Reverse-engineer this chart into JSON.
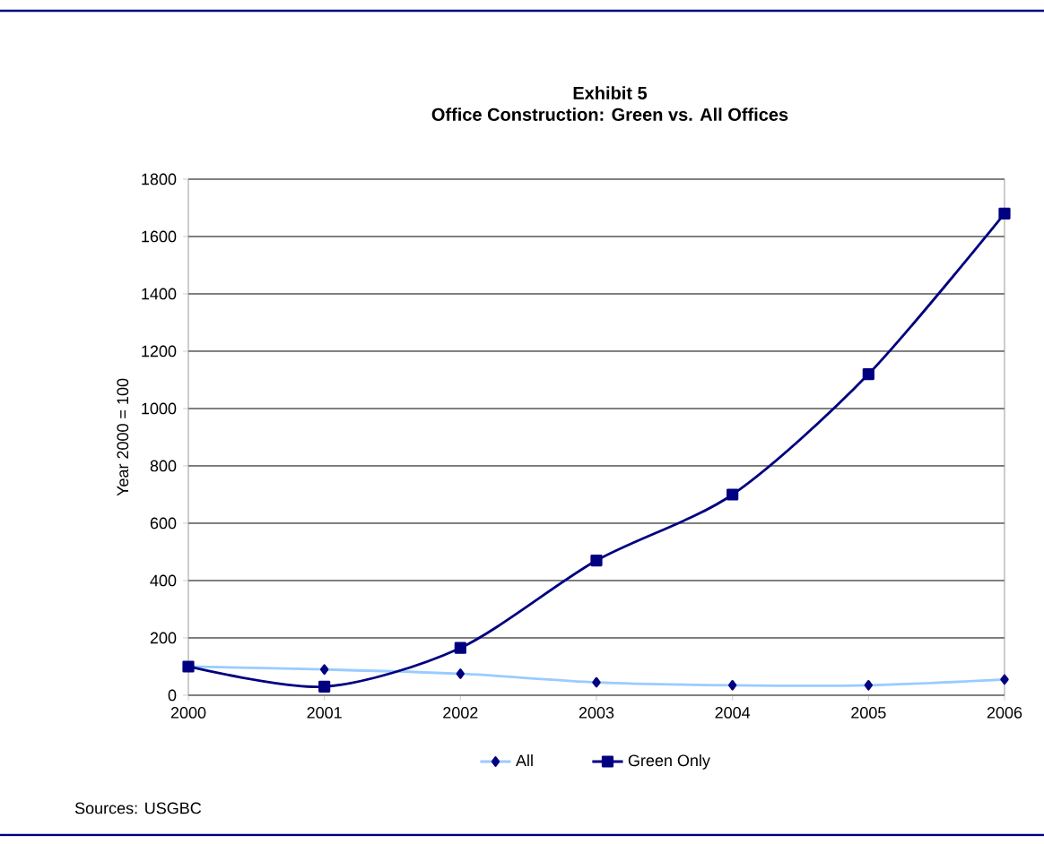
{
  "chart_data": {
    "type": "line",
    "title": "Exhibit 5",
    "subtitle": "Office Construction: Green vs. All Offices",
    "ylabel": "Year 2000 = 100",
    "x": [
      2000,
      2001,
      2002,
      2003,
      2004,
      2005,
      2006
    ],
    "series": [
      {
        "name": "All",
        "color": "#99ccff",
        "marker": "diamond",
        "values": [
          100,
          90,
          75,
          45,
          35,
          35,
          55
        ]
      },
      {
        "name": "Green Only",
        "color": "#000080",
        "marker": "square",
        "values": [
          100,
          30,
          165,
          470,
          700,
          1120,
          1680
        ]
      }
    ],
    "xlim": [
      2000,
      2006
    ],
    "xticks": [
      2000,
      2001,
      2002,
      2003,
      2004,
      2005,
      2006
    ],
    "ylim": [
      0,
      1800
    ],
    "yticks": [
      0,
      200,
      400,
      600,
      800,
      1000,
      1200,
      1400,
      1600,
      1800
    ],
    "grid": "y",
    "legend": "bottom",
    "annotations": [
      "Sources: USGBC"
    ]
  }
}
